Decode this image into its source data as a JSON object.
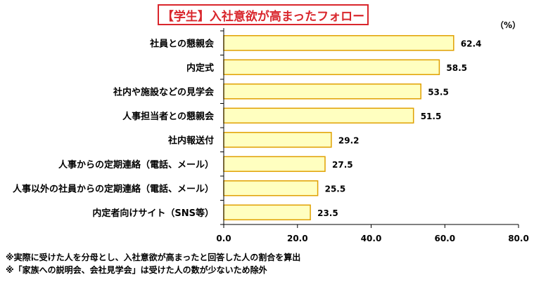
{
  "chart_data": {
    "type": "bar",
    "orientation": "horizontal",
    "title": "【学生】入社意欲が高まったフォロー",
    "unit": "（%）",
    "categories": [
      "社員との懇親会",
      "内定式",
      "社内や施設などの見学会",
      "人事担当者との懇親会",
      "社内報送付",
      "人事からの定期連絡（電話、メール）",
      "人事以外の社員からの定期連絡（電話、メール）",
      "内定者向けサイト（SNS等）"
    ],
    "values": [
      62.4,
      58.5,
      53.5,
      51.5,
      29.2,
      27.5,
      25.5,
      23.5
    ],
    "value_labels": [
      "62.4",
      "58.5",
      "53.5",
      "51.5",
      "29.2",
      "27.5",
      "25.5",
      "23.5"
    ],
    "xlim": [
      0,
      80
    ],
    "xticks": [
      "0.0",
      "20.0",
      "40.0",
      "60.0",
      "80.0"
    ],
    "grid": false,
    "bar_fill": "#ffffc0",
    "bar_stroke": "#e0a000",
    "title_color": "#d9262c"
  },
  "notes": [
    "※実際に受けた人を分母とし、入社意欲が高まったと回答した人の割合を算出",
    "※「家族への説明会、会社見学会」は受けた人の数が少ないため除外"
  ]
}
